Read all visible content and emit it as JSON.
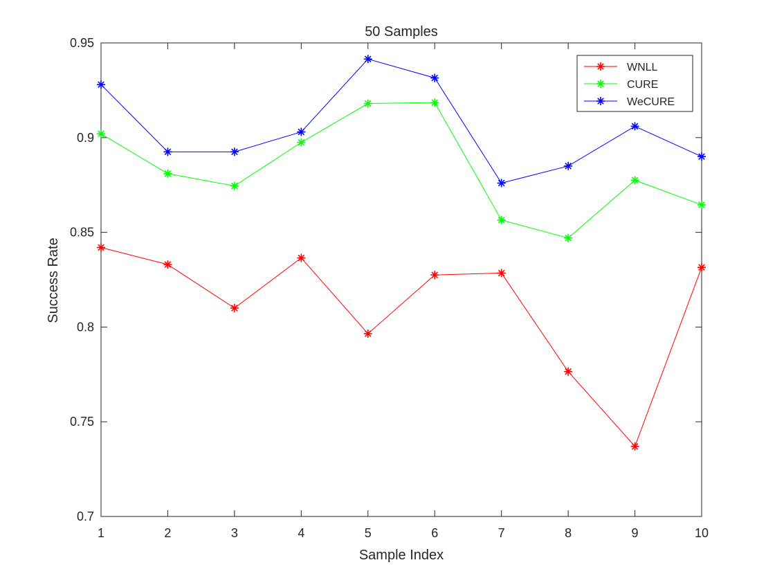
{
  "chart_data": {
    "type": "line",
    "title": "50 Samples",
    "xlabel": "Sample Index",
    "ylabel": "Success Rate",
    "x": [
      1,
      2,
      3,
      4,
      5,
      6,
      7,
      8,
      9,
      10
    ],
    "xlim": [
      1,
      10
    ],
    "ylim": [
      0.7,
      0.95
    ],
    "xticks": [
      "1",
      "2",
      "3",
      "4",
      "5",
      "6",
      "7",
      "8",
      "9",
      "10"
    ],
    "yticks": [
      "0.7",
      "0.75",
      "0.8",
      "0.85",
      "0.9",
      "0.95"
    ],
    "grid": false,
    "legend_position": "top-right",
    "marker": "asterisk",
    "series": [
      {
        "name": "WNLL",
        "color": "#ff0000",
        "values": [
          0.842,
          0.833,
          0.81,
          0.8365,
          0.7965,
          0.8275,
          0.8285,
          0.7765,
          0.737,
          0.8315
        ]
      },
      {
        "name": "CURE",
        "color": "#00ff00",
        "values": [
          0.902,
          0.881,
          0.8745,
          0.8975,
          0.918,
          0.9185,
          0.8565,
          0.847,
          0.8775,
          0.8645
        ]
      },
      {
        "name": "WeCURE",
        "color": "#0000ff",
        "values": [
          0.928,
          0.8925,
          0.8925,
          0.903,
          0.9415,
          0.9315,
          0.876,
          0.885,
          0.906,
          0.89
        ]
      }
    ]
  }
}
